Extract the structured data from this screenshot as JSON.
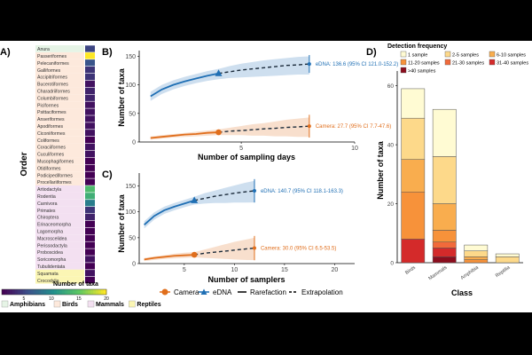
{
  "panelA": {
    "label": "A)",
    "ylabel": "Order",
    "orders": [
      "Anura",
      "Passeriformes",
      "Pelecaniformes",
      "Galliformes",
      "Accipitriformes",
      "Bucerotiformes",
      "Charadriiformes",
      "Columbiformes",
      "Piciformes",
      "Psittaciformes",
      "Anseriformes",
      "Apodiformes",
      "Ciconiiformes",
      "Coliformes",
      "Coraciiformes",
      "Cuculiformes",
      "Musophagiformes",
      "Otidiformes",
      "Podicipediformes",
      "Procellariiformes",
      "Artiodactyla",
      "Rodentia",
      "Carnivora",
      "Primates",
      "Chiroptera",
      "Erinaceomorpha",
      "Lagomorpha",
      "Macroscelidea",
      "Perissodactyla",
      "Proboscidea",
      "Soricomorpha",
      "Tubulidentata",
      "Squamata",
      "Crocodylia"
    ],
    "classes": [
      "Amphibians",
      "Birds",
      "Birds",
      "Birds",
      "Birds",
      "Birds",
      "Birds",
      "Birds",
      "Birds",
      "Birds",
      "Birds",
      "Birds",
      "Birds",
      "Birds",
      "Birds",
      "Birds",
      "Birds",
      "Birds",
      "Birds",
      "Birds",
      "Mammals",
      "Mammals",
      "Mammals",
      "Mammals",
      "Mammals",
      "Mammals",
      "Mammals",
      "Mammals",
      "Mammals",
      "Mammals",
      "Mammals",
      "Mammals",
      "Reptiles",
      "Reptiles"
    ],
    "values": [
      5,
      20,
      6,
      4,
      4,
      2,
      3,
      3,
      2,
      2,
      2,
      2,
      2,
      1,
      2,
      2,
      1,
      1,
      1,
      1,
      14,
      13,
      9,
      4,
      3,
      1,
      1,
      1,
      1,
      1,
      2,
      1,
      2,
      1
    ],
    "colorbar_title": "Number of taxa",
    "colorbar_ticks": [
      "5",
      "10",
      "15",
      "20"
    ],
    "colorbar_min": 1,
    "colorbar_max": 20,
    "class_legend": [
      {
        "name": "Amphibians",
        "color": "#e6f4e6"
      },
      {
        "name": "Birds",
        "color": "#fde9dc"
      },
      {
        "name": "Mammals",
        "color": "#f3e0f1"
      },
      {
        "name": "Reptiles",
        "color": "#fbf6b4"
      }
    ]
  },
  "chart_data": [
    {
      "type": "line",
      "title": "B)",
      "xlabel": "Number of sampling days",
      "ylabel": "Number of taxa",
      "xlim": [
        0.5,
        10
      ],
      "ylim": [
        0,
        160
      ],
      "xticks": [
        5,
        10
      ],
      "yticks": [
        0,
        50,
        100,
        150
      ],
      "series": [
        {
          "name": "eDNA",
          "color": "#1f6fb4",
          "rarefaction_x": [
            1,
            1.5,
            2,
            2.5,
            3,
            3.5,
            4
          ],
          "rarefaction_y": [
            80,
            92,
            100,
            106,
            111,
            116,
            120
          ],
          "extrapolation_x": [
            4,
            4.5,
            5,
            5.5,
            6,
            6.5,
            7,
            7.5,
            8
          ],
          "extrapolation_y": [
            120,
            123,
            126,
            128,
            130,
            132,
            134,
            135,
            136.6
          ],
          "ci_low": [
            72,
            84,
            92,
            98,
            103,
            107,
            110,
            112,
            113,
            114,
            115,
            116,
            117,
            118,
            118,
            119,
            121
          ],
          "ci_high": [
            88,
            100,
            108,
            114,
            119,
            124,
            128,
            133,
            137,
            140,
            143,
            145,
            147,
            149,
            150,
            151,
            152
          ],
          "observed_x": 4,
          "observed_y": 120,
          "estimate_x": 8,
          "estimate_y": 136.6,
          "estimate_ci": [
            121,
            152.2
          ],
          "annotation": "eDNA: 136.6 (95% CI 121.0-152.2)"
        },
        {
          "name": "Camera",
          "color": "#e06e1c",
          "rarefaction_x": [
            1,
            1.5,
            2,
            2.5,
            3,
            3.5,
            4
          ],
          "rarefaction_y": [
            7,
            9,
            11,
            13,
            14,
            16,
            17
          ],
          "extrapolation_x": [
            4,
            4.5,
            5,
            5.5,
            6,
            6.5,
            7,
            7.5,
            8
          ],
          "extrapolation_y": [
            17,
            19,
            20,
            21.5,
            23,
            24,
            25.5,
            26.5,
            27.7
          ],
          "ci_low": [
            4,
            6,
            8,
            9,
            10,
            11,
            12,
            12,
            12,
            11,
            11,
            10,
            10,
            9,
            9,
            8,
            7.7
          ],
          "ci_high": [
            10,
            12,
            14,
            16,
            18,
            20,
            22,
            25,
            28,
            31,
            33,
            36,
            39,
            41,
            43,
            45,
            47.6
          ],
          "observed_x": 4,
          "observed_y": 17,
          "estimate_x": 8,
          "estimate_y": 27.7,
          "estimate_ci": [
            7.7,
            47.6
          ],
          "annotation": "Camera: 27.7 (95% CI 7.7-47.6)"
        }
      ]
    },
    {
      "type": "line",
      "title": "C)",
      "xlabel": "Number of samplers",
      "ylabel": "Number of taxa",
      "xlim": [
        0.5,
        22
      ],
      "ylim": [
        0,
        175
      ],
      "xticks": [
        5,
        10,
        15,
        20
      ],
      "yticks": [
        0,
        50,
        100,
        150
      ],
      "series": [
        {
          "name": "eDNA",
          "color": "#1f6fb4",
          "rarefaction_x": [
            1,
            2,
            3,
            4,
            5,
            6
          ],
          "rarefaction_y": [
            75,
            92,
            103,
            110,
            116,
            122
          ],
          "extrapolation_x": [
            6,
            7,
            8,
            9,
            10,
            11,
            12
          ],
          "extrapolation_y": [
            122,
            126,
            130,
            133,
            136,
            138.5,
            140.7
          ],
          "ci_low": [
            68,
            85,
            96,
            103,
            109,
            114,
            116,
            117,
            117,
            118,
            118,
            118.1,
            118.1
          ],
          "ci_high": [
            82,
            99,
            110,
            117,
            123,
            129,
            136,
            141,
            146,
            151,
            156,
            160,
            163.3
          ],
          "observed_x": 6,
          "observed_y": 122,
          "estimate_x": 12,
          "estimate_y": 140.7,
          "estimate_ci": [
            118.1,
            163.3
          ],
          "annotation": "eDNA: 140.7 (95% CI 118.1-163.3)"
        },
        {
          "name": "Camera",
          "color": "#e06e1c",
          "rarefaction_x": [
            1,
            2,
            3,
            4,
            5,
            6
          ],
          "rarefaction_y": [
            8,
            11,
            13,
            15,
            16,
            17
          ],
          "extrapolation_x": [
            6,
            7,
            8,
            9,
            10,
            11,
            12
          ],
          "extrapolation_y": [
            17,
            20,
            22,
            24,
            26,
            28,
            30
          ],
          "ci_low": [
            5,
            7,
            9,
            10,
            11,
            12,
            11,
            10,
            9,
            8,
            7,
            6.7,
            6.5
          ],
          "ci_high": [
            11,
            14,
            16,
            19,
            21,
            22,
            27,
            32,
            37,
            42,
            46,
            50,
            53.5
          ],
          "observed_x": 6,
          "observed_y": 17,
          "estimate_x": 12,
          "estimate_y": 30,
          "estimate_ci": [
            6.5,
            53.5
          ],
          "annotation": "Camera: 30.0 (95% CI 6.5-53.5)"
        }
      ]
    },
    {
      "type": "bar",
      "title": "D)",
      "xlabel": "Class",
      "ylabel": "Number of taxa",
      "categories": [
        "Birds",
        "Mammals",
        "Amphibia",
        "Reptilia"
      ],
      "ylim": [
        0,
        65
      ],
      "yticks": [
        0,
        20,
        40,
        60
      ],
      "legend_title": "Detection frequency",
      "series": [
        {
          "name": ">40 samples",
          "color": "#8b0d1d",
          "values": [
            0,
            2,
            0,
            0
          ]
        },
        {
          "name": "31-40 samples",
          "color": "#d42a2a",
          "values": [
            8,
            3,
            0,
            0
          ]
        },
        {
          "name": "21-30 samples",
          "color": "#f16a3b",
          "values": [
            0,
            2,
            0,
            0
          ]
        },
        {
          "name": "11-20 samples",
          "color": "#f7923a",
          "values": [
            16,
            4,
            1,
            0
          ]
        },
        {
          "name": "6-10 samples",
          "color": "#f9ad4e",
          "values": [
            11,
            9,
            1,
            0
          ]
        },
        {
          "name": "2-5 samples",
          "color": "#fdd98a",
          "values": [
            14,
            16,
            2,
            2
          ]
        },
        {
          "name": "1 sample",
          "color": "#fffbd3",
          "values": [
            10,
            16,
            2,
            1
          ]
        }
      ],
      "legend_order": [
        "1 sample",
        "2-5 samples",
        "6-10 samples",
        "11-20 samples",
        "21-30 samples",
        "31-40 samples",
        ">40 samples"
      ]
    }
  ],
  "bottom_legend": {
    "camera": "Camera",
    "edna": "eDNA",
    "rarefaction": "Rarefaction",
    "extrapolation": "Extrapolation"
  }
}
